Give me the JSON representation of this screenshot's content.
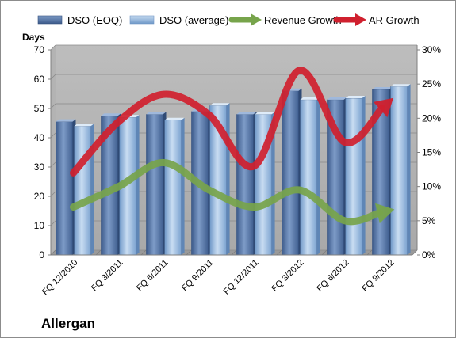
{
  "chart_data": {
    "type": "bar",
    "title": "Allergan",
    "ylabel": "Days",
    "xlabel": "",
    "categories": [
      "FQ 12/2010",
      "FQ 3/2011",
      "FQ 6/2011",
      "FQ 9/2011",
      "FQ 12/2011",
      "FQ 3/2012",
      "FQ 6/2012",
      "FQ 9/2012"
    ],
    "ylim": [
      0,
      70
    ],
    "yticks": [
      "0",
      "10",
      "20",
      "30",
      "40",
      "50",
      "60",
      "70"
    ],
    "y2lim": [
      0,
      30
    ],
    "y2ticks": [
      "0%",
      "5%",
      "10%",
      "15%",
      "20%",
      "25%",
      "30%"
    ],
    "legend_position": "top",
    "series": [
      {
        "name": "DSO (EOQ)",
        "type": "bar",
        "axis": "left",
        "color": "#4f6fa0",
        "values": [
          45.5,
          47.5,
          48,
          49,
          48,
          56,
          53,
          56.5
        ]
      },
      {
        "name": "DSO (average)",
        "type": "bar",
        "axis": "left",
        "color": "#8fb3da",
        "values": [
          44,
          47,
          46,
          51,
          48,
          53,
          53.5,
          57.5
        ]
      },
      {
        "name": "Revenue Growth",
        "type": "line",
        "axis": "right",
        "color": "#77a44b",
        "values": [
          7.0,
          10.0,
          13.5,
          9.5,
          7.0,
          9.5,
          5.0,
          6.5
        ]
      },
      {
        "name": "AR Growth",
        "type": "line",
        "axis": "right",
        "color": "#d0202e",
        "values": [
          12.0,
          19.5,
          23.5,
          20.5,
          13.0,
          27.0,
          16.5,
          22.5
        ]
      }
    ]
  }
}
